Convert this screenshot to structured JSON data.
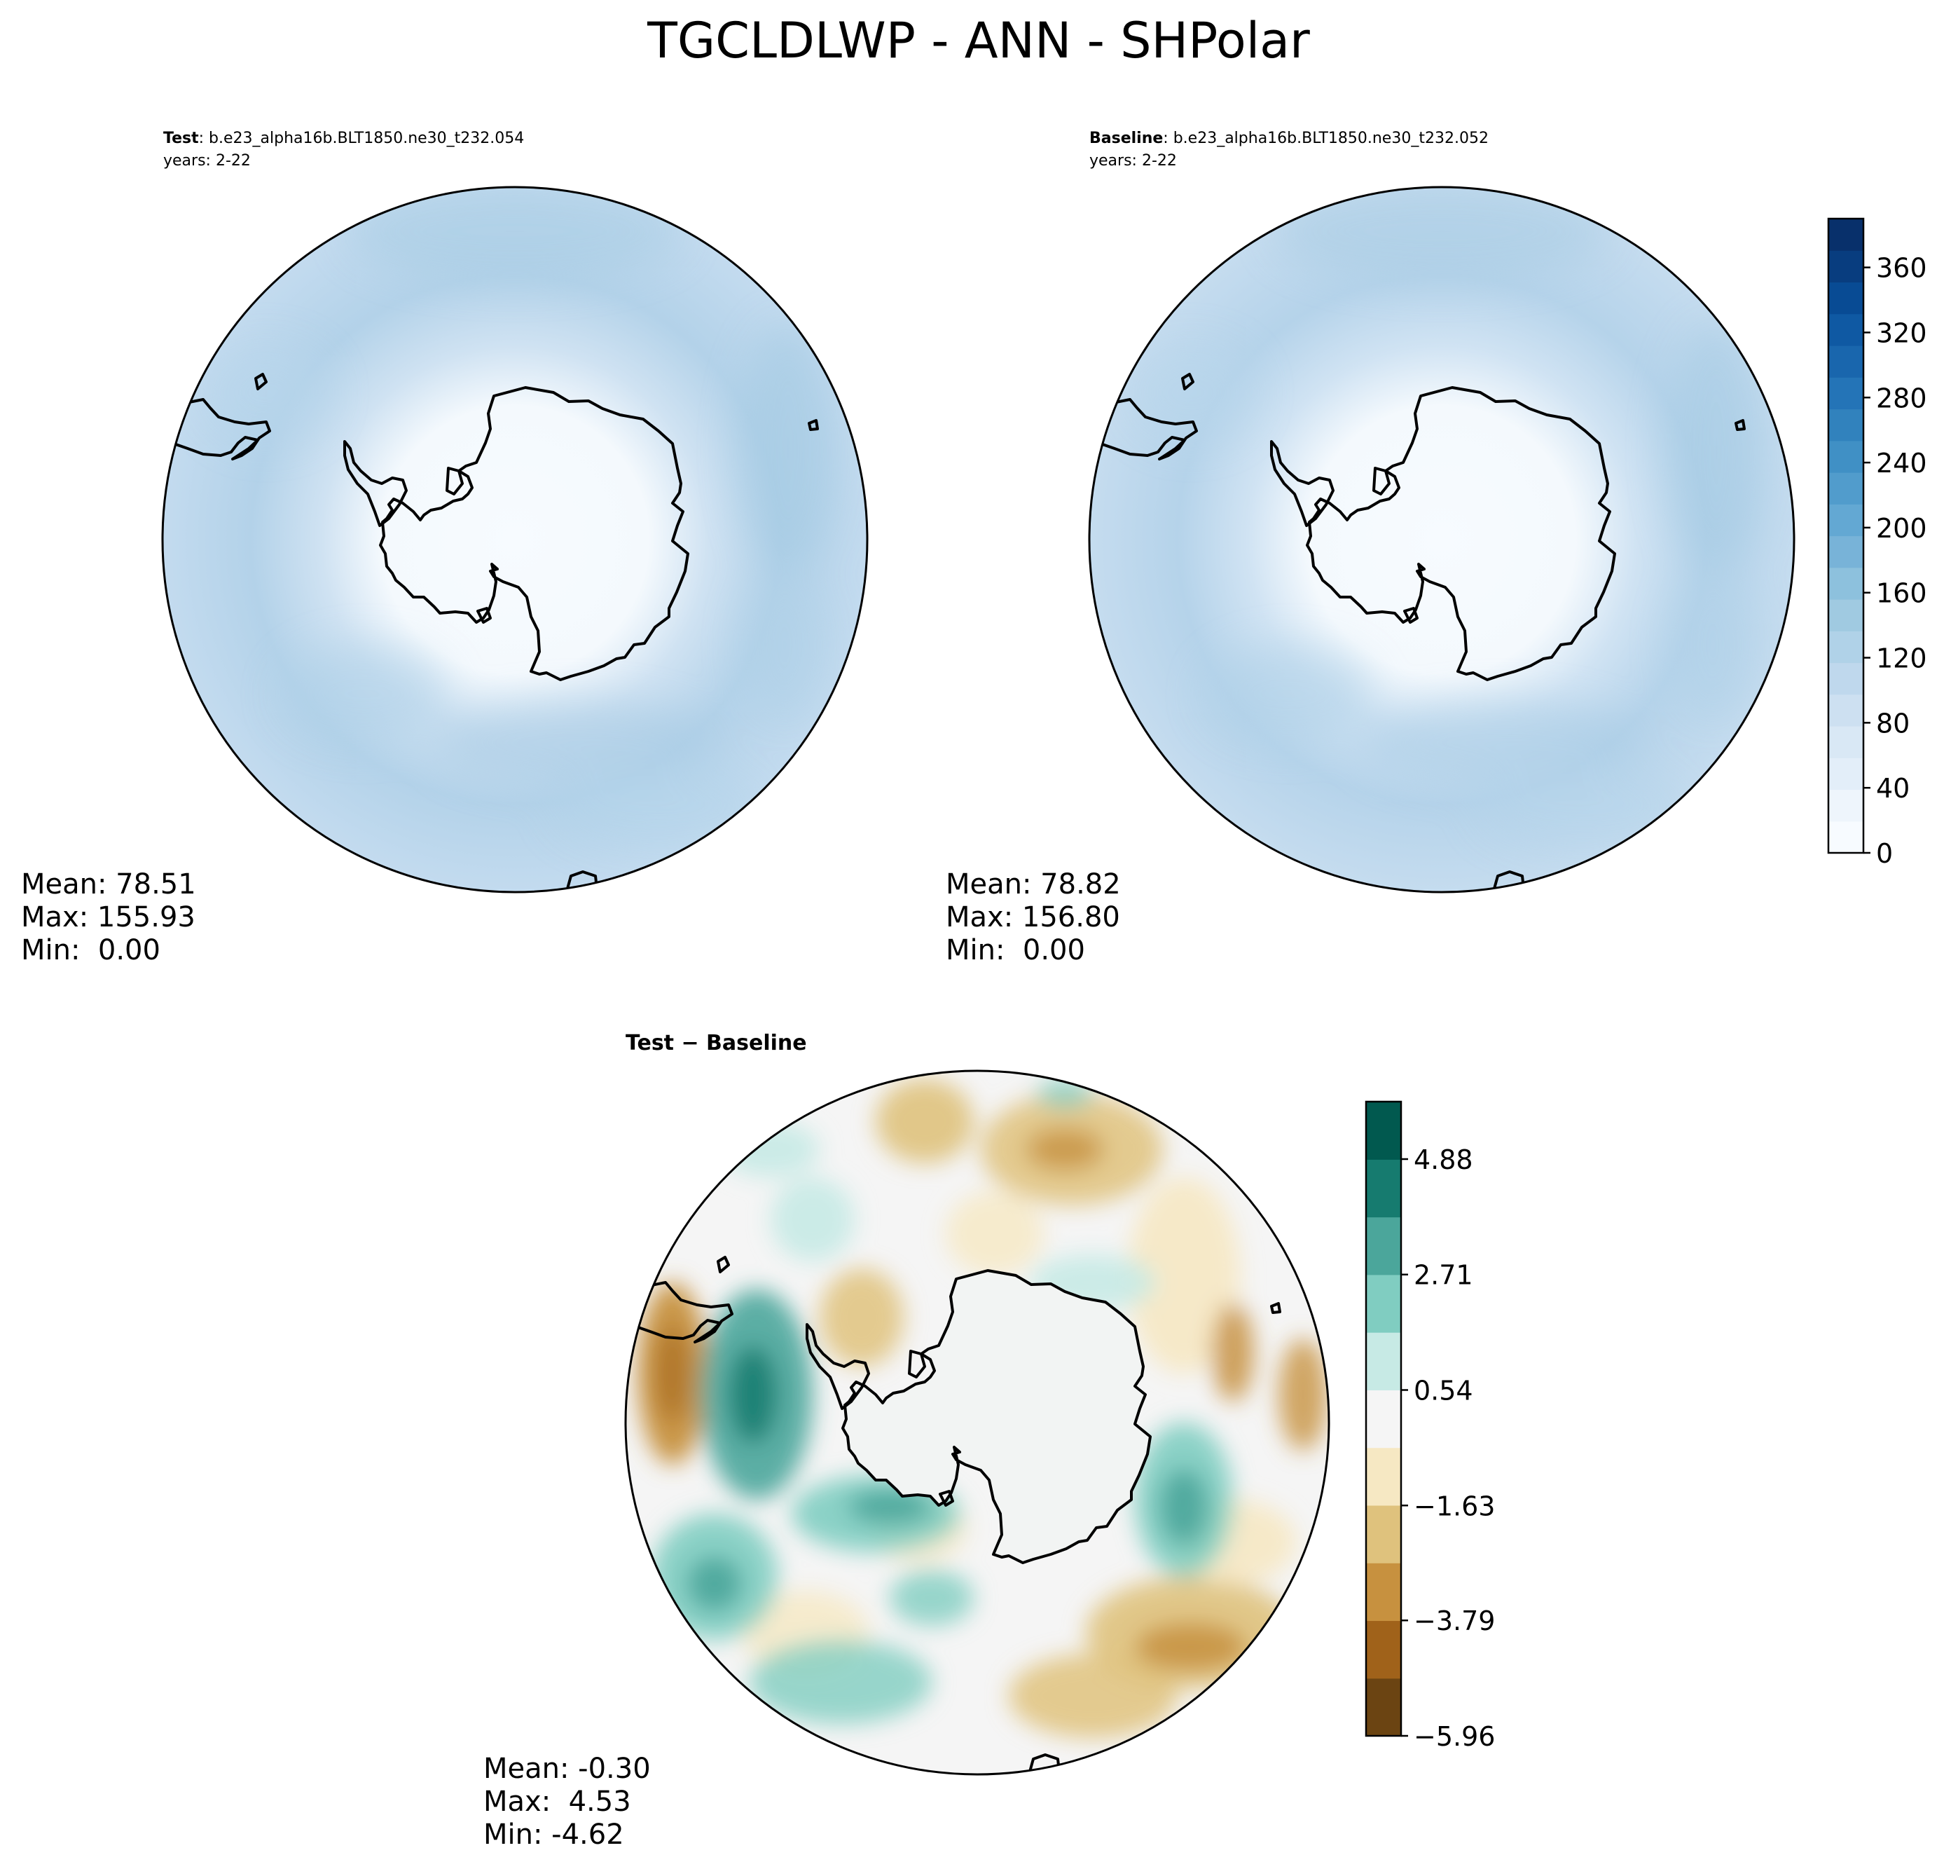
{
  "figure": {
    "title": "TGCLDLWP - ANN - SHPolar"
  },
  "panels": [
    {
      "label_bold": "Test",
      "label_rest": ": b.e23_alpha16b.BLT1850.ne30_t232.054",
      "years": "years: 2-22",
      "stats": [
        "Mean: 78.51",
        "Max: 155.93",
        "Min:  0.00"
      ]
    },
    {
      "label_bold": "Baseline",
      "label_rest": ": b.e23_alpha16b.BLT1850.ne30_t232.052",
      "years": "years: 2-22",
      "stats": [
        "Mean: 78.82",
        "Max: 156.80",
        "Min:  0.00"
      ]
    },
    {
      "title": "Test − Baseline",
      "stats": [
        "Mean: -0.30",
        "Max:  4.53",
        "Min: -4.62"
      ]
    }
  ],
  "colorbars": [
    {
      "name": "absolute",
      "cmap": "Blues",
      "range": [
        0,
        390
      ],
      "ticks": [
        "0",
        "40",
        "80",
        "120",
        "160",
        "200",
        "240",
        "280",
        "320",
        "360"
      ],
      "tick_values": [
        0,
        40,
        80,
        120,
        160,
        200,
        240,
        280,
        320,
        360
      ],
      "colors": [
        "#f7fbff",
        "#eef5fc",
        "#e3eef9",
        "#d9e8f5",
        "#cde0f1",
        "#bfd8ed",
        "#b0d2e8",
        "#a0cae1",
        "#8dc1dd",
        "#78b3d8",
        "#63a8d3",
        "#519ccc",
        "#4090c5",
        "#3182bd",
        "#2474b7",
        "#1966ad",
        "#0f59a3",
        "#084b94",
        "#083d7f",
        "#08306b"
      ]
    },
    {
      "name": "difference",
      "cmap": "BrBG",
      "range": [
        -5.96,
        5.96
      ],
      "ticks": [
        "−5.96",
        "−3.79",
        "−1.63",
        "0.54",
        "2.71",
        "4.88"
      ],
      "tick_values": [
        -5.96,
        -3.79,
        -1.63,
        0.54,
        2.71,
        4.88
      ],
      "colors": [
        "#6b4412",
        "#a0621a",
        "#c7913f",
        "#dfc27d",
        "#f6e8c3",
        "#f5f5f5",
        "#c7eae5",
        "#80cdc1",
        "#4ba69b",
        "#167b6f",
        "#01594f"
      ]
    }
  ]
}
